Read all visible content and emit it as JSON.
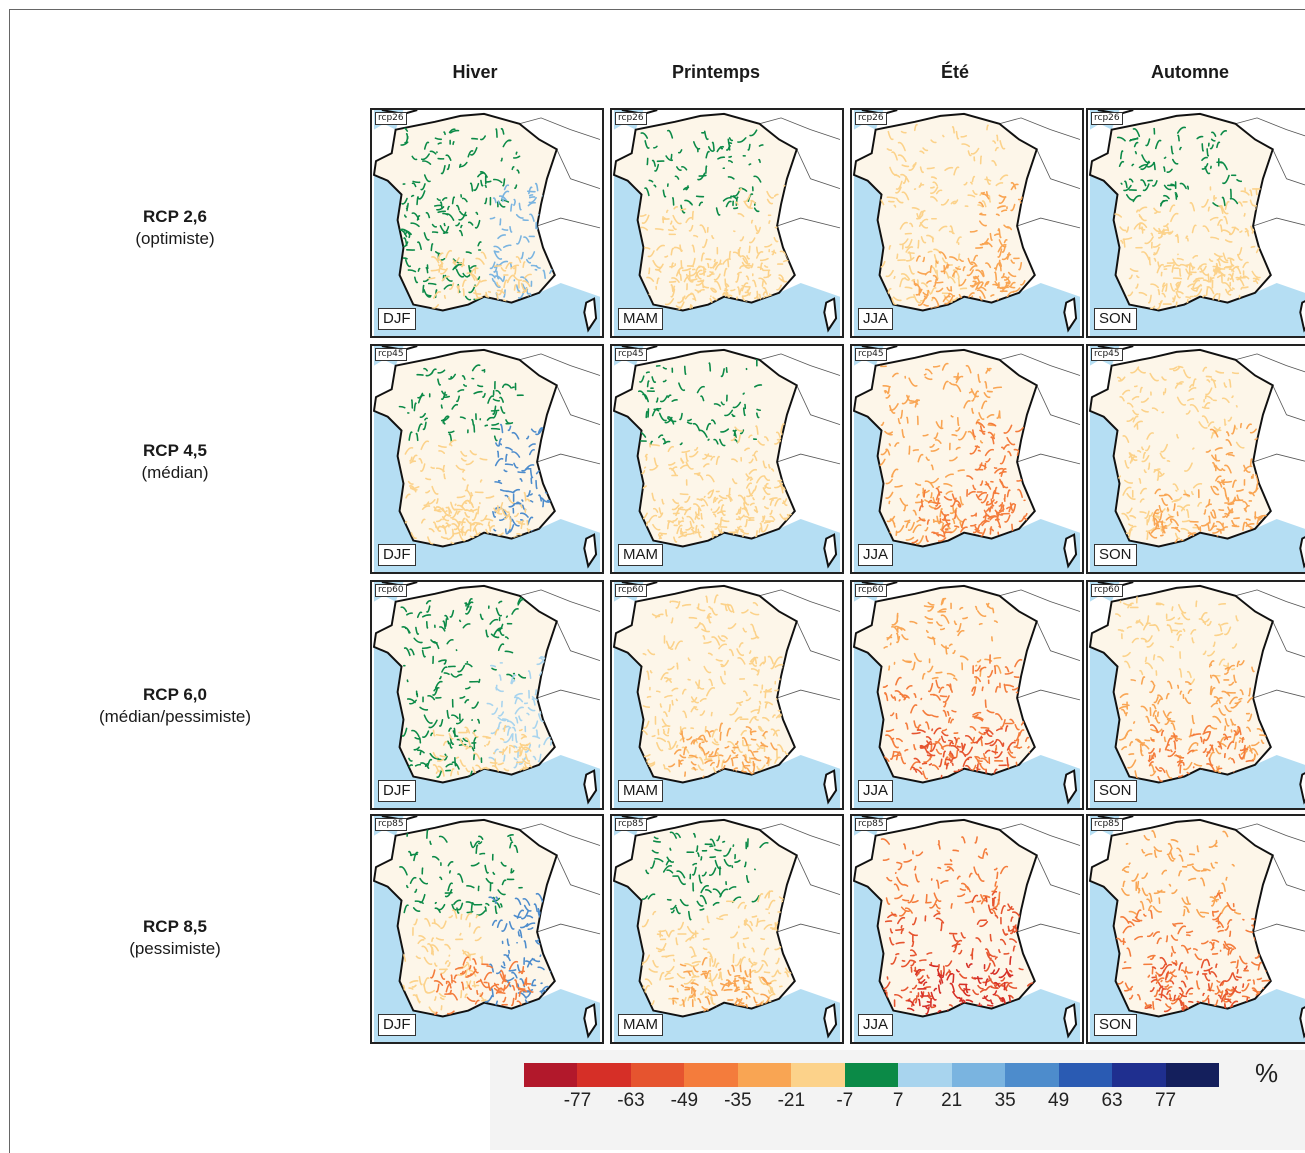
{
  "seasons": [
    {
      "label": "Hiver",
      "code": "DJF"
    },
    {
      "label": "Printemps",
      "code": "MAM"
    },
    {
      "label": "Été",
      "code": "JJA"
    },
    {
      "label": "Automne",
      "code": "SON"
    }
  ],
  "scenarios": [
    {
      "title": "RCP 2,6",
      "subtitle": "(optimiste)",
      "tag": "rcp26"
    },
    {
      "title": "RCP 4,5",
      "subtitle": "(médian)",
      "tag": "rcp45"
    },
    {
      "title": "RCP 6,0",
      "subtitle": "(médian/pessimiste)",
      "tag": "rcp60"
    },
    {
      "title": "RCP 8,5",
      "subtitle": "(pessimiste)",
      "tag": "rcp85"
    }
  ],
  "legend": {
    "unit": "%",
    "ticks": [
      "-77",
      "-63",
      "-49",
      "-35",
      "-21",
      "-7",
      "7",
      "21",
      "35",
      "49",
      "63",
      "77"
    ],
    "colors": [
      "#b2182b",
      "#d62f27",
      "#e6542f",
      "#f47c3c",
      "#f9a553",
      "#fcd28a",
      "#0b8a47",
      "#a8d4ee",
      "#7ab4e0",
      "#4d8ccc",
      "#2a5bb3",
      "#1f2f8f",
      "#141f5c"
    ]
  },
  "palette": {
    "sea": "#b5def3",
    "land_outside": "#ffffff",
    "france_land": "#fdf6e9",
    "coast": "#111111"
  },
  "panel_colors": [
    [
      [
        "#0b8a47",
        "#0b8a47",
        "#7ab4e0",
        "#fcd28a"
      ],
      [
        "#0b8a47",
        "#fcd28a",
        "#fcd28a",
        "#fcd28a"
      ],
      [
        "#fcd28a",
        "#fcd28a",
        "#f9a553",
        "#f9a553"
      ],
      [
        "#0b8a47",
        "#fcd28a",
        "#fcd28a",
        "#fcd28a"
      ]
    ],
    [
      [
        "#0b8a47",
        "#fcd28a",
        "#4d8ccc",
        "#fcd28a"
      ],
      [
        "#0b8a47",
        "#fcd28a",
        "#fcd28a",
        "#fcd28a"
      ],
      [
        "#f9a553",
        "#f9a553",
        "#f47c3c",
        "#f47c3c"
      ],
      [
        "#fcd28a",
        "#fcd28a",
        "#f9a553",
        "#f9a553"
      ]
    ],
    [
      [
        "#0b8a47",
        "#0b8a47",
        "#a8d4ee",
        "#fcd28a"
      ],
      [
        "#fcd28a",
        "#fcd28a",
        "#fcd28a",
        "#f9a553"
      ],
      [
        "#f9a553",
        "#f47c3c",
        "#f47c3c",
        "#e6542f"
      ],
      [
        "#fcd28a",
        "#f9a553",
        "#f9a553",
        "#f47c3c"
      ]
    ],
    [
      [
        "#0b8a47",
        "#fcd28a",
        "#4d8ccc",
        "#f47c3c"
      ],
      [
        "#0b8a47",
        "#fcd28a",
        "#fcd28a",
        "#f9a553"
      ],
      [
        "#f47c3c",
        "#e6542f",
        "#e6542f",
        "#d62f27"
      ],
      [
        "#f9a553",
        "#f47c3c",
        "#f47c3c",
        "#e6542f"
      ]
    ]
  ]
}
